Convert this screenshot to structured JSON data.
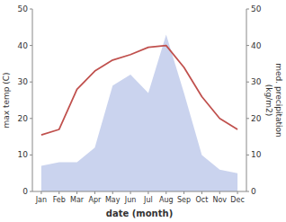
{
  "chart_data": {
    "type": "line",
    "categories": [
      "Jan",
      "Feb",
      "Mar",
      "Apr",
      "May",
      "Jun",
      "Jul",
      "Aug",
      "Sep",
      "Oct",
      "Nov",
      "Dec"
    ],
    "series": [
      {
        "type": "area",
        "color": "#b8c4e8",
        "axis": "y2",
        "values": [
          7,
          8,
          8,
          12,
          29,
          32,
          27,
          43,
          27,
          10,
          6,
          5
        ]
      },
      {
        "type": "line",
        "color": "#c0504d",
        "values": [
          15.5,
          17,
          28,
          33,
          36,
          37.5,
          39.5,
          40,
          34,
          26,
          20,
          17
        ]
      }
    ],
    "xlabel": "date (month)",
    "ylabel": "max temp (C)",
    "y2label": "med. precipitation\n(kg/m2)",
    "ylim": [
      0,
      50
    ],
    "yticks": [
      0,
      10,
      20,
      30,
      40,
      50
    ],
    "y2lim": [
      0,
      50
    ],
    "y2ticks": [
      0,
      10,
      20,
      30,
      40,
      50
    ],
    "grid": false
  }
}
